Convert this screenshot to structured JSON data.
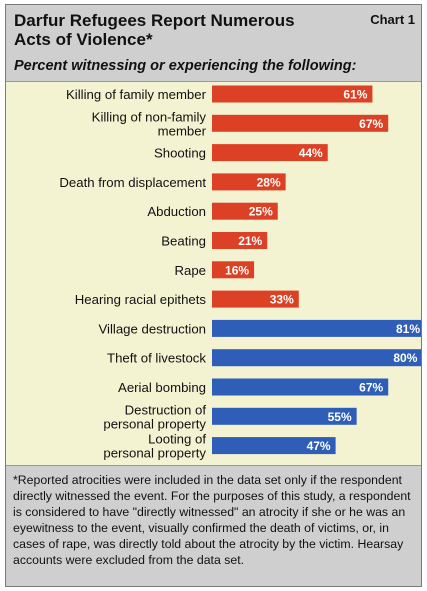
{
  "header": {
    "title": "Darfur Refugees Report Numerous Acts of Violence*",
    "chart_label": "Chart 1",
    "subtitle": "Percent witnessing or experiencing the following:"
  },
  "colors": {
    "violence": "#dc4126",
    "property": "#2e5eb8",
    "header_bg": "#cfcfcf",
    "plot_bg": "#f3f3d2"
  },
  "chart_data": {
    "type": "bar",
    "orientation": "horizontal",
    "title": "Darfur Refugees Report Numerous Acts of Violence*",
    "subtitle": "Percent witnessing or experiencing the following:",
    "xlim": [
      0,
      100
    ],
    "grid": false,
    "legend": "none",
    "data_labels": true,
    "bars": [
      {
        "label": [
          "Killing of family member"
        ],
        "value": 61,
        "group": "violence"
      },
      {
        "label": [
          "Killing of non-family",
          "member"
        ],
        "value": 67,
        "group": "violence"
      },
      {
        "label": [
          "Shooting"
        ],
        "value": 44,
        "group": "violence"
      },
      {
        "label": [
          "Death from displacement"
        ],
        "value": 28,
        "group": "violence"
      },
      {
        "label": [
          "Abduction"
        ],
        "value": 25,
        "group": "violence"
      },
      {
        "label": [
          "Beating"
        ],
        "value": 21,
        "group": "violence"
      },
      {
        "label": [
          "Rape"
        ],
        "value": 16,
        "group": "violence"
      },
      {
        "label": [
          "Hearing racial epithets"
        ],
        "value": 33,
        "group": "violence"
      },
      {
        "label": [
          "Village destruction"
        ],
        "value": 81,
        "group": "property"
      },
      {
        "label": [
          "Theft of livestock"
        ],
        "value": 80,
        "group": "property"
      },
      {
        "label": [
          "Aerial bombing"
        ],
        "value": 67,
        "group": "property"
      },
      {
        "label": [
          "Destruction of",
          "personal property"
        ],
        "value": 55,
        "group": "property"
      },
      {
        "label": [
          "Looting of",
          "personal property"
        ],
        "value": 47,
        "group": "property"
      }
    ]
  },
  "footnote": "*Reported atrocities were included in the data set only if the respondent directly witnessed the event.  For the purposes of this study, a respondent is considered to have \"directly witnessed\" an atrocity if she or he was an eyewitness to the event, visually confirmed the death of victims, or, in cases of rape, was directly told about the atrocity by the victim.  Hearsay accounts were excluded from the data set."
}
